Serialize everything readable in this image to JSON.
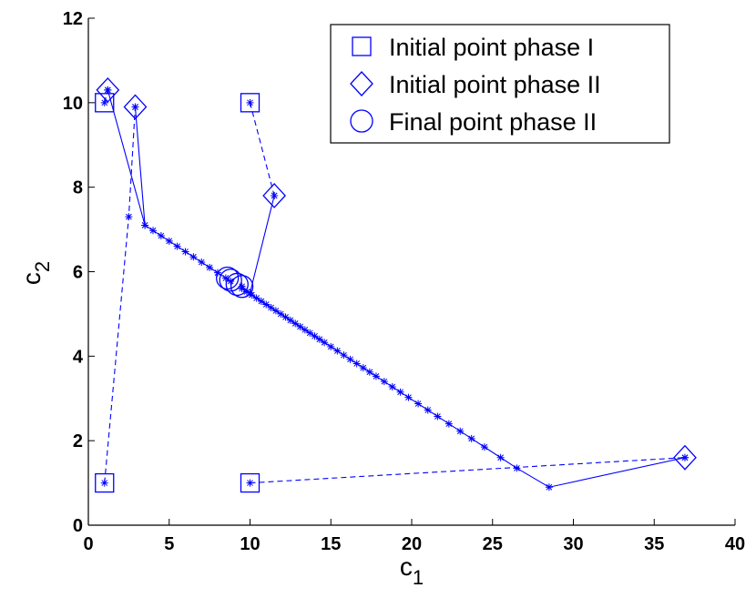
{
  "chart_data": {
    "type": "line",
    "xlabel": "c",
    "xlabel_sub": "1",
    "ylabel": "c",
    "ylabel_sub": "2",
    "xlim": [
      0,
      40
    ],
    "xticks": [
      0,
      5,
      10,
      15,
      20,
      25,
      30,
      35,
      40
    ],
    "ylim": [
      0,
      12
    ],
    "yticks": [
      0,
      2,
      4,
      6,
      8,
      10,
      12
    ],
    "color": "#0000ff",
    "lines": [
      {
        "style": "dashed",
        "x": [
          1,
          1.2
        ],
        "y": [
          10,
          10.3
        ]
      },
      {
        "style": "solid",
        "x": [
          1.2,
          3.5,
          4,
          4.5,
          5,
          5.5,
          6,
          6.5,
          7,
          7.5,
          8,
          8.5,
          8.8
        ],
        "y": [
          10.3,
          7.1,
          6.975,
          6.85,
          6.725,
          6.6,
          6.475,
          6.35,
          6.225,
          6.1,
          5.975,
          5.85,
          5.775
        ]
      },
      {
        "style": "dashed",
        "x": [
          1,
          2.5,
          2.9
        ],
        "y": [
          1,
          7.3,
          9.9
        ]
      },
      {
        "style": "solid",
        "x": [
          2.9,
          3.5
        ],
        "y": [
          9.9,
          7.1
        ]
      },
      {
        "style": "dashed",
        "x": [
          10,
          11.5
        ],
        "y": [
          10,
          7.8
        ]
      },
      {
        "style": "solid",
        "x": [
          11.5,
          10,
          9.5
        ],
        "y": [
          7.8,
          5.5,
          5.65
        ]
      },
      {
        "style": "dashed",
        "x": [
          10,
          36.9
        ],
        "y": [
          1,
          1.6
        ]
      },
      {
        "style": "solid",
        "x": [
          36.9,
          28.5,
          26.5,
          25.5,
          24.5,
          23.7,
          23,
          22.3,
          21.6,
          21,
          20.4,
          19.8,
          19.3,
          18.8,
          18.3,
          17.8,
          17.4,
          17,
          16.6,
          16.2,
          15.8,
          15.4,
          15,
          14.6,
          14.3,
          14,
          13.7,
          13.4,
          13.1,
          12.8,
          12.5,
          12.2,
          11.9,
          11.6,
          11.3,
          11,
          10.7,
          10.4,
          10.1,
          9.8,
          9.5
        ],
        "y": [
          1.6,
          0.9,
          1.35,
          1.6,
          1.85,
          2.05,
          2.225,
          2.4,
          2.575,
          2.725,
          2.875,
          3.025,
          3.15,
          3.275,
          3.4,
          3.525,
          3.625,
          3.725,
          3.825,
          3.925,
          4.025,
          4.125,
          4.225,
          4.325,
          4.4,
          4.475,
          4.55,
          4.625,
          4.7,
          4.775,
          4.85,
          4.925,
          5.0,
          5.075,
          5.15,
          5.225,
          5.3,
          5.375,
          5.45,
          5.525,
          5.6
        ]
      }
    ],
    "markers": [
      {
        "label": "Initial point phase I",
        "shape": "square",
        "x": [
          1,
          1,
          10,
          10
        ],
        "y": [
          10,
          1,
          10,
          1
        ]
      },
      {
        "label": "Initial point phase II",
        "shape": "diamond",
        "x": [
          1.2,
          2.9,
          11.5,
          36.9
        ],
        "y": [
          10.3,
          9.9,
          7.8,
          1.6
        ]
      },
      {
        "label": "Final point phase II",
        "shape": "circle",
        "x": [
          8.6,
          8.8,
          9.2,
          9.5
        ],
        "y": [
          5.85,
          5.8,
          5.7,
          5.65
        ]
      }
    ]
  }
}
